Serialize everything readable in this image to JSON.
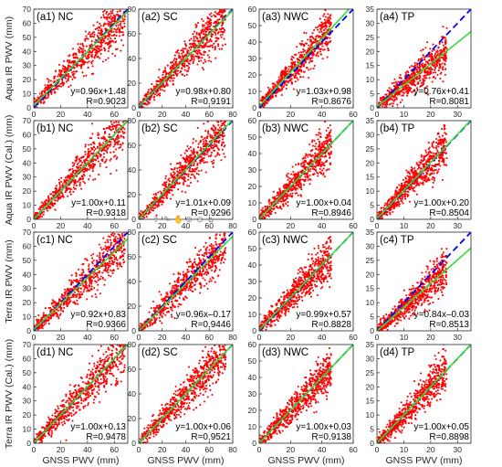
{
  "colors": {
    "scatter": "#ff0000",
    "one_to_one": "#0000ff",
    "fit": "#33dd33",
    "axis": "#262626"
  },
  "toolbar": {
    "icons": [
      "export-icon",
      "brush-icon",
      "pan-icon",
      "zoom-in-icon",
      "zoom-out-icon",
      "home-icon"
    ],
    "glyphs": [
      "⇪",
      "✎",
      "✋",
      "⊕",
      "⊖",
      "⌂"
    ]
  },
  "chart_data": [
    {
      "type": "scatter",
      "title": "(a1) NC",
      "ylabel": "Aqua IR PWV (mm)",
      "xlabel": "",
      "xlim": [
        0,
        70
      ],
      "ylim": [
        0,
        70
      ],
      "xticks": [
        0,
        20,
        40,
        60
      ],
      "yticks": [
        0,
        10,
        20,
        30,
        40,
        50,
        60,
        70
      ],
      "fit": {
        "slope": 0.96,
        "intercept": 1.48
      },
      "equation": "y=0.96x+1.48",
      "r_text": "R=0.9023",
      "point_range": [
        0,
        68
      ]
    },
    {
      "type": "scatter",
      "title": "(a2) SC",
      "ylabel": "",
      "xlabel": "",
      "xlim": [
        0,
        80
      ],
      "ylim": [
        0,
        80
      ],
      "xticks": [
        0,
        20,
        40,
        60,
        80
      ],
      "yticks": [
        0,
        20,
        40,
        60,
        80
      ],
      "fit": {
        "slope": 0.98,
        "intercept": 0.8
      },
      "equation": "y=0.98x+0.80",
      "r_text": "R=0.9191",
      "point_range": [
        0,
        74
      ]
    },
    {
      "type": "scatter",
      "title": "(a3) NWC",
      "ylabel": "",
      "xlabel": "",
      "xlim": [
        0,
        60
      ],
      "ylim": [
        0,
        60
      ],
      "xticks": [
        0,
        20,
        40,
        60
      ],
      "yticks": [
        0,
        10,
        20,
        30,
        40,
        50,
        60
      ],
      "fit": {
        "slope": 1.03,
        "intercept": 0.98
      },
      "equation": "y=1.03x+0.98",
      "r_text": "R=0.8676",
      "point_range": [
        0,
        46
      ]
    },
    {
      "type": "scatter",
      "title": "(a4) TP",
      "ylabel": "",
      "xlabel": "",
      "xlim": [
        0,
        35
      ],
      "ylim": [
        0,
        35
      ],
      "xticks": [
        0,
        10,
        20,
        30
      ],
      "yticks": [
        0,
        5,
        10,
        15,
        20,
        25,
        30,
        35
      ],
      "fit": {
        "slope": 0.76,
        "intercept": 0.41
      },
      "equation": "y=0.76x+0.41",
      "r_text": "R=0.8081",
      "point_range": [
        0,
        26
      ]
    },
    {
      "type": "scatter",
      "title": "(b1) NC",
      "ylabel": "Aqua IR PWV (Cal.) (mm)",
      "xlabel": "",
      "xlim": [
        0,
        70
      ],
      "ylim": [
        0,
        70
      ],
      "xticks": [
        0,
        20,
        40,
        60
      ],
      "yticks": [
        0,
        10,
        20,
        30,
        40,
        50,
        60,
        70
      ],
      "fit": {
        "slope": 1.0,
        "intercept": 0.11
      },
      "equation": "y=1.00x+0.11",
      "r_text": "R=0.9318",
      "point_range": [
        0,
        68
      ]
    },
    {
      "type": "scatter",
      "title": "(b2) SC",
      "ylabel": "",
      "xlabel": "",
      "xlim": [
        0,
        80
      ],
      "ylim": [
        0,
        80
      ],
      "xticks": [
        0,
        20,
        40,
        60,
        80
      ],
      "yticks": [
        0,
        20,
        40,
        60,
        80
      ],
      "fit": {
        "slope": 1.01,
        "intercept": 0.09
      },
      "equation": "y=1.01x+0.09",
      "r_text": "R=0.9296",
      "point_range": [
        0,
        74
      ]
    },
    {
      "type": "scatter",
      "title": "(b3) NWC",
      "ylabel": "",
      "xlabel": "",
      "xlim": [
        0,
        60
      ],
      "ylim": [
        0,
        60
      ],
      "xticks": [
        0,
        20,
        40,
        60
      ],
      "yticks": [
        0,
        10,
        20,
        30,
        40,
        50,
        60
      ],
      "fit": {
        "slope": 1.0,
        "intercept": 0.04
      },
      "equation": "y=1.00x+0.04",
      "r_text": "R=0.8946",
      "point_range": [
        0,
        46
      ]
    },
    {
      "type": "scatter",
      "title": "(b4) TP",
      "ylabel": "",
      "xlabel": "",
      "xlim": [
        0,
        35
      ],
      "ylim": [
        0,
        35
      ],
      "xticks": [
        0,
        10,
        20,
        30
      ],
      "yticks": [
        0,
        5,
        10,
        15,
        20,
        25,
        30,
        35
      ],
      "fit": {
        "slope": 1.0,
        "intercept": 0.2
      },
      "equation": "y=1.00x+0.20",
      "r_text": "R=0.8504",
      "point_range": [
        0,
        26
      ]
    },
    {
      "type": "scatter",
      "title": "(c1) NC",
      "ylabel": "Terra IR PWV (mm)",
      "xlabel": "",
      "xlim": [
        0,
        70
      ],
      "ylim": [
        0,
        70
      ],
      "xticks": [
        0,
        20,
        40,
        60
      ],
      "yticks": [
        0,
        10,
        20,
        30,
        40,
        50,
        60,
        70
      ],
      "fit": {
        "slope": 0.92,
        "intercept": 0.83
      },
      "equation": "y=0.92x+0.83",
      "r_text": "R=0.9366",
      "point_range": [
        0,
        68
      ]
    },
    {
      "type": "scatter",
      "title": "(c2) SC",
      "ylabel": "",
      "xlabel": "",
      "xlim": [
        0,
        80
      ],
      "ylim": [
        0,
        80
      ],
      "xticks": [
        0,
        20,
        40,
        60,
        80
      ],
      "yticks": [
        0,
        20,
        40,
        60,
        80
      ],
      "fit": {
        "slope": 0.96,
        "intercept": -0.17
      },
      "equation": "y=0.96x–0.17",
      "r_text": "R=0.9446",
      "point_range": [
        0,
        74
      ]
    },
    {
      "type": "scatter",
      "title": "(c3) NWC",
      "ylabel": "",
      "xlabel": "",
      "xlim": [
        0,
        60
      ],
      "ylim": [
        0,
        60
      ],
      "xticks": [
        0,
        20,
        40,
        60
      ],
      "yticks": [
        0,
        10,
        20,
        30,
        40,
        50,
        60
      ],
      "fit": {
        "slope": 0.99,
        "intercept": 0.57
      },
      "equation": "y=0.99x+0.57",
      "r_text": "R=0.8828",
      "point_range": [
        0,
        46
      ]
    },
    {
      "type": "scatter",
      "title": "(c4) TP",
      "ylabel": "",
      "xlabel": "",
      "xlim": [
        0,
        35
      ],
      "ylim": [
        0,
        35
      ],
      "xticks": [
        0,
        10,
        20,
        30
      ],
      "yticks": [
        0,
        5,
        10,
        15,
        20,
        25,
        30,
        35
      ],
      "fit": {
        "slope": 0.84,
        "intercept": -0.03
      },
      "equation": "y=0.84x–0.03",
      "r_text": "R=0.8513",
      "point_range": [
        0,
        26
      ]
    },
    {
      "type": "scatter",
      "title": "(d1) NC",
      "ylabel": "Terra IR PWV (Cal.) (mm)",
      "xlabel": "GNSS PWV (mm)",
      "xlim": [
        0,
        70
      ],
      "ylim": [
        0,
        70
      ],
      "xticks": [
        0,
        20,
        40,
        60
      ],
      "yticks": [
        0,
        10,
        20,
        30,
        40,
        50,
        60,
        70
      ],
      "fit": {
        "slope": 1.0,
        "intercept": 0.13
      },
      "equation": "y=1.00x+0.13",
      "r_text": "R=0.9478",
      "point_range": [
        0,
        68
      ]
    },
    {
      "type": "scatter",
      "title": "(d2) SC",
      "ylabel": "",
      "xlabel": "GNSS PWV (mm)",
      "xlim": [
        0,
        80
      ],
      "ylim": [
        0,
        80
      ],
      "xticks": [
        0,
        20,
        40,
        60,
        80
      ],
      "yticks": [
        0,
        20,
        40,
        60,
        80
      ],
      "fit": {
        "slope": 1.0,
        "intercept": 0.06
      },
      "equation": "y=1.00x+0.06",
      "r_text": "R=0.9521",
      "point_range": [
        0,
        74
      ]
    },
    {
      "type": "scatter",
      "title": "(d3) NWC",
      "ylabel": "",
      "xlabel": "GNSS PWV (mm)",
      "xlim": [
        0,
        60
      ],
      "ylim": [
        0,
        60
      ],
      "xticks": [
        0,
        20,
        40,
        60
      ],
      "yticks": [
        0,
        10,
        20,
        30,
        40,
        50,
        60
      ],
      "fit": {
        "slope": 1.0,
        "intercept": 0.03
      },
      "equation": "y=1.00x+0.03",
      "r_text": "R=0.9138",
      "point_range": [
        0,
        46
      ]
    },
    {
      "type": "scatter",
      "title": "(d4) TP",
      "ylabel": "",
      "xlabel": "GNSS PWV (mm)",
      "xlim": [
        0,
        35
      ],
      "ylim": [
        0,
        35
      ],
      "xticks": [
        0,
        10,
        20,
        30
      ],
      "yticks": [
        0,
        5,
        10,
        15,
        20,
        25,
        30,
        35
      ],
      "fit": {
        "slope": 1.0,
        "intercept": 0.05
      },
      "equation": "y=1.00x+0.05",
      "r_text": "R=0.8898",
      "point_range": [
        0,
        26
      ]
    }
  ]
}
